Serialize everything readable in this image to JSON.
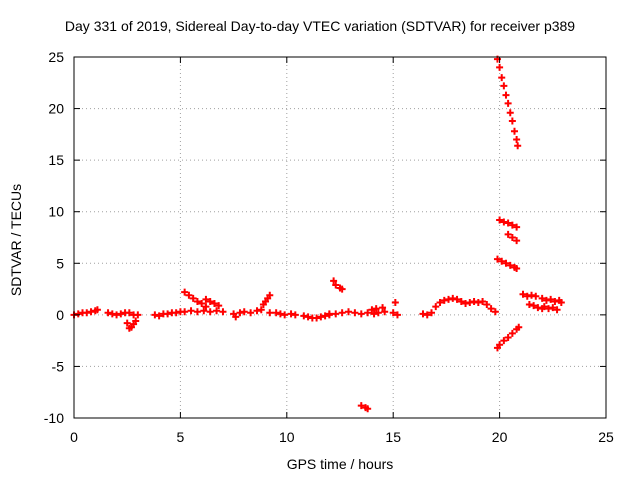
{
  "chart_data": {
    "type": "scatter",
    "title": "Day 331 of 2019, Sidereal Day-to-day VTEC variation (SDTVAR) for receiver p389",
    "xlabel": "GPS time / hours",
    "ylabel": "SDTVAR / TECUs",
    "xlim": [
      0,
      25
    ],
    "ylim": [
      -10,
      25
    ],
    "xticks": [
      0,
      5,
      10,
      15,
      20,
      25
    ],
    "yticks": [
      -10,
      -5,
      0,
      5,
      10,
      15,
      20,
      25
    ],
    "grid": true,
    "marker": "+",
    "color": "#ff0000",
    "points": [
      [
        0.0,
        0.0
      ],
      [
        0.2,
        0.1
      ],
      [
        0.4,
        0.2
      ],
      [
        0.6,
        0.2
      ],
      [
        0.8,
        0.3
      ],
      [
        1.0,
        0.4
      ],
      [
        1.1,
        0.5
      ],
      [
        1.6,
        0.2
      ],
      [
        1.8,
        0.1
      ],
      [
        2.0,
        0.0
      ],
      [
        2.2,
        0.1
      ],
      [
        2.4,
        0.2
      ],
      [
        2.5,
        -0.8
      ],
      [
        2.6,
        -1.3
      ],
      [
        2.7,
        -1.2
      ],
      [
        2.8,
        -0.9
      ],
      [
        2.9,
        -0.6
      ],
      [
        2.6,
        0.2
      ],
      [
        2.8,
        0.0
      ],
      [
        3.0,
        0.0
      ],
      [
        3.8,
        0.0
      ],
      [
        4.0,
        -0.1
      ],
      [
        4.2,
        0.1
      ],
      [
        4.4,
        0.1
      ],
      [
        4.6,
        0.2
      ],
      [
        4.8,
        0.2
      ],
      [
        5.0,
        0.3
      ],
      [
        5.2,
        2.2
      ],
      [
        5.4,
        1.9
      ],
      [
        5.6,
        1.6
      ],
      [
        5.8,
        1.3
      ],
      [
        6.0,
        1.1
      ],
      [
        6.2,
        0.8
      ],
      [
        5.2,
        0.3
      ],
      [
        5.5,
        0.4
      ],
      [
        5.8,
        0.3
      ],
      [
        6.1,
        0.4
      ],
      [
        6.4,
        0.3
      ],
      [
        6.7,
        0.4
      ],
      [
        7.0,
        0.3
      ],
      [
        6.2,
        1.5
      ],
      [
        6.4,
        1.3
      ],
      [
        6.6,
        1.1
      ],
      [
        6.8,
        0.9
      ],
      [
        7.5,
        0.1
      ],
      [
        7.6,
        -0.2
      ],
      [
        7.8,
        0.2
      ],
      [
        8.0,
        0.3
      ],
      [
        8.3,
        0.2
      ],
      [
        8.6,
        0.4
      ],
      [
        8.8,
        0.5
      ],
      [
        8.9,
        1.0
      ],
      [
        9.0,
        1.3
      ],
      [
        9.1,
        1.6
      ],
      [
        9.2,
        1.9
      ],
      [
        9.2,
        0.2
      ],
      [
        9.5,
        0.2
      ],
      [
        9.7,
        0.1
      ],
      [
        9.9,
        0.0
      ],
      [
        10.2,
        0.1
      ],
      [
        10.4,
        0.0
      ],
      [
        10.8,
        -0.1
      ],
      [
        11.0,
        -0.2
      ],
      [
        11.2,
        -0.3
      ],
      [
        11.4,
        -0.3
      ],
      [
        11.6,
        -0.2
      ],
      [
        11.8,
        -0.1
      ],
      [
        12.0,
        0.0
      ],
      [
        12.2,
        3.3
      ],
      [
        12.3,
        2.9
      ],
      [
        12.5,
        2.6
      ],
      [
        12.6,
        2.5
      ],
      [
        12.0,
        0.1
      ],
      [
        12.3,
        0.1
      ],
      [
        12.6,
        0.2
      ],
      [
        12.9,
        0.3
      ],
      [
        13.2,
        0.2
      ],
      [
        13.5,
        0.1
      ],
      [
        13.8,
        0.2
      ],
      [
        13.5,
        -8.8
      ],
      [
        13.7,
        -9.0
      ],
      [
        13.8,
        -9.1
      ],
      [
        14.0,
        0.5
      ],
      [
        14.1,
        0.1
      ],
      [
        14.2,
        0.6
      ],
      [
        14.3,
        0.2
      ],
      [
        14.5,
        0.7
      ],
      [
        14.6,
        0.3
      ],
      [
        15.0,
        0.2
      ],
      [
        15.1,
        1.2
      ],
      [
        15.2,
        0.0
      ],
      [
        16.4,
        0.1
      ],
      [
        16.6,
        0.0
      ],
      [
        16.8,
        0.2
      ],
      [
        17.0,
        0.8
      ],
      [
        17.2,
        1.2
      ],
      [
        17.4,
        1.4
      ],
      [
        17.6,
        1.5
      ],
      [
        17.8,
        1.6
      ],
      [
        18.0,
        1.5
      ],
      [
        18.2,
        1.3
      ],
      [
        18.4,
        1.1
      ],
      [
        18.6,
        1.2
      ],
      [
        18.8,
        1.3
      ],
      [
        19.0,
        1.2
      ],
      [
        19.2,
        1.3
      ],
      [
        19.4,
        1.0
      ],
      [
        19.6,
        0.6
      ],
      [
        19.8,
        0.3
      ],
      [
        19.9,
        24.8
      ],
      [
        20.0,
        24.0
      ],
      [
        20.1,
        23.0
      ],
      [
        20.2,
        22.2
      ],
      [
        20.3,
        21.3
      ],
      [
        20.4,
        20.5
      ],
      [
        20.5,
        19.6
      ],
      [
        20.6,
        18.8
      ],
      [
        20.7,
        17.8
      ],
      [
        20.8,
        17.0
      ],
      [
        20.85,
        16.4
      ],
      [
        20.0,
        9.2
      ],
      [
        20.2,
        9.0
      ],
      [
        20.4,
        8.9
      ],
      [
        20.6,
        8.7
      ],
      [
        20.8,
        8.5
      ],
      [
        20.4,
        7.8
      ],
      [
        20.6,
        7.5
      ],
      [
        20.8,
        7.2
      ],
      [
        19.9,
        5.4
      ],
      [
        20.1,
        5.2
      ],
      [
        20.3,
        5.0
      ],
      [
        20.5,
        4.8
      ],
      [
        20.7,
        4.6
      ],
      [
        20.8,
        4.5
      ],
      [
        19.9,
        -3.2
      ],
      [
        20.0,
        -2.9
      ],
      [
        20.2,
        -2.5
      ],
      [
        20.4,
        -2.2
      ],
      [
        20.6,
        -1.8
      ],
      [
        20.8,
        -1.4
      ],
      [
        20.9,
        -1.2
      ],
      [
        21.1,
        2.0
      ],
      [
        21.3,
        1.8
      ],
      [
        21.5,
        1.9
      ],
      [
        21.7,
        1.8
      ],
      [
        21.4,
        1.0
      ],
      [
        21.6,
        0.9
      ],
      [
        21.8,
        0.7
      ],
      [
        22.0,
        0.6
      ],
      [
        22.0,
        1.6
      ],
      [
        22.2,
        1.4
      ],
      [
        22.4,
        1.5
      ],
      [
        22.6,
        1.3
      ],
      [
        22.8,
        1.4
      ],
      [
        22.9,
        1.2
      ],
      [
        22.1,
        0.8
      ],
      [
        22.3,
        0.6
      ],
      [
        22.5,
        0.7
      ],
      [
        22.7,
        0.5
      ]
    ]
  }
}
